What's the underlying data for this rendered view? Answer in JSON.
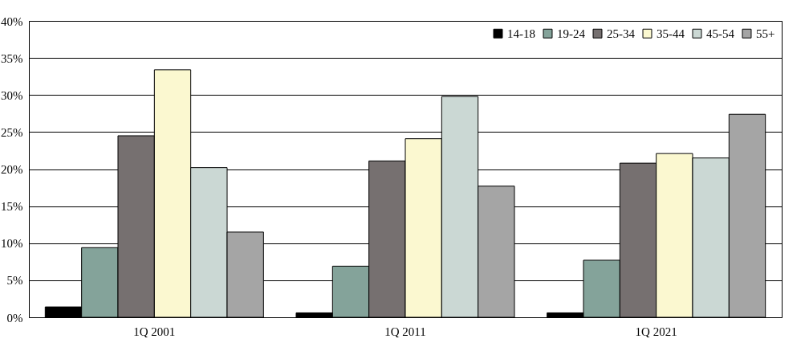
{
  "chart_data": {
    "type": "bar",
    "categories": [
      "1Q 2001",
      "1Q 2011",
      "1Q 2021"
    ],
    "series": [
      {
        "name": "14-18",
        "color": "#000000",
        "values": [
          1.4,
          0.6,
          0.6
        ]
      },
      {
        "name": "19-24",
        "color": "#84a39a",
        "values": [
          9.4,
          6.9,
          7.7
        ]
      },
      {
        "name": "25-34",
        "color": "#767070",
        "values": [
          24.5,
          21.1,
          20.8
        ]
      },
      {
        "name": "35-44",
        "color": "#fbf8d0",
        "values": [
          33.4,
          24.1,
          22.1
        ]
      },
      {
        "name": "45-54",
        "color": "#cbd8d4",
        "values": [
          20.2,
          29.8,
          21.5
        ]
      },
      {
        "name": "55+",
        "color": "#a5a5a5",
        "values": [
          11.5,
          17.7,
          27.4
        ]
      }
    ],
    "ylim": [
      0,
      40
    ],
    "yticks": [
      {
        "value": 0,
        "label": "0%"
      },
      {
        "value": 5,
        "label": "5%"
      },
      {
        "value": 10,
        "label": "10%"
      },
      {
        "value": 15,
        "label": "15%"
      },
      {
        "value": 20,
        "label": "20%"
      },
      {
        "value": 25,
        "label": "25%"
      },
      {
        "value": 30,
        "label": "30%"
      },
      {
        "value": 35,
        "label": "35%"
      },
      {
        "value": 40,
        "label": "40%"
      }
    ],
    "grid": "y",
    "legend": "top right"
  }
}
